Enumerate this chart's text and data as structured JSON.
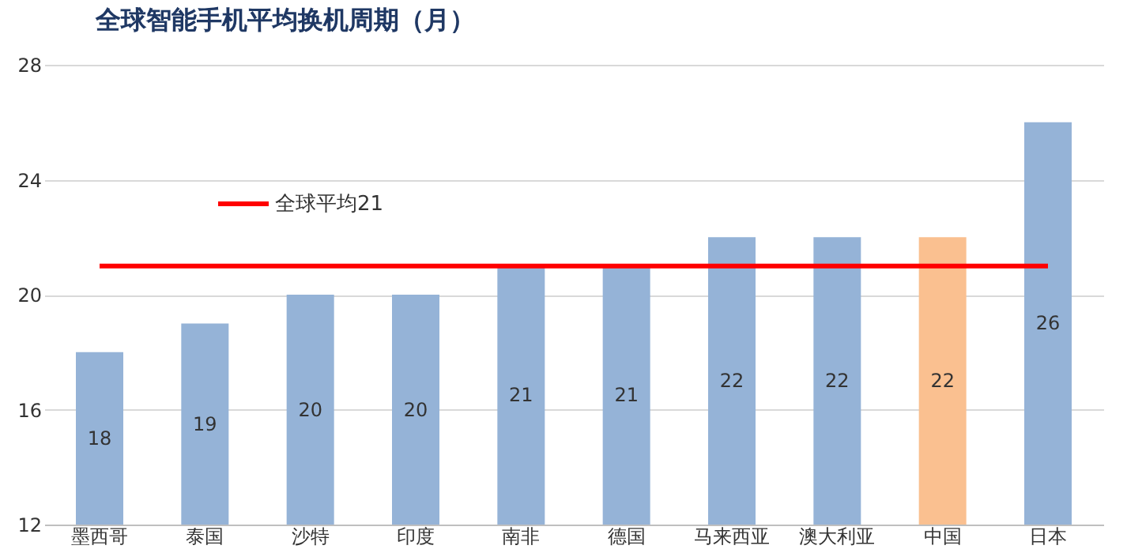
{
  "chart_data": {
    "type": "bar",
    "title": "全球智能手机平均换机周期（月）",
    "categories": [
      "墨西哥",
      "泰国",
      "沙特",
      "印度",
      "南非",
      "德国",
      "马来西亚",
      "澳大利亚",
      "中国",
      "日本"
    ],
    "values": [
      18,
      19,
      20,
      20,
      21,
      21,
      22,
      22,
      22,
      26
    ],
    "colors": [
      "#95b3d7",
      "#95b3d7",
      "#95b3d7",
      "#95b3d7",
      "#95b3d7",
      "#95b3d7",
      "#95b3d7",
      "#95b3d7",
      "#fac090",
      "#95b3d7"
    ],
    "ylim": [
      12,
      28
    ],
    "yticks": [
      12,
      16,
      20,
      24,
      28
    ],
    "grid": "y",
    "data_labels": true,
    "ref_lines": [
      {
        "axis": "y",
        "value": 21,
        "label": "全球平均21",
        "color": "#ff0000",
        "line_style": "solid"
      }
    ]
  }
}
